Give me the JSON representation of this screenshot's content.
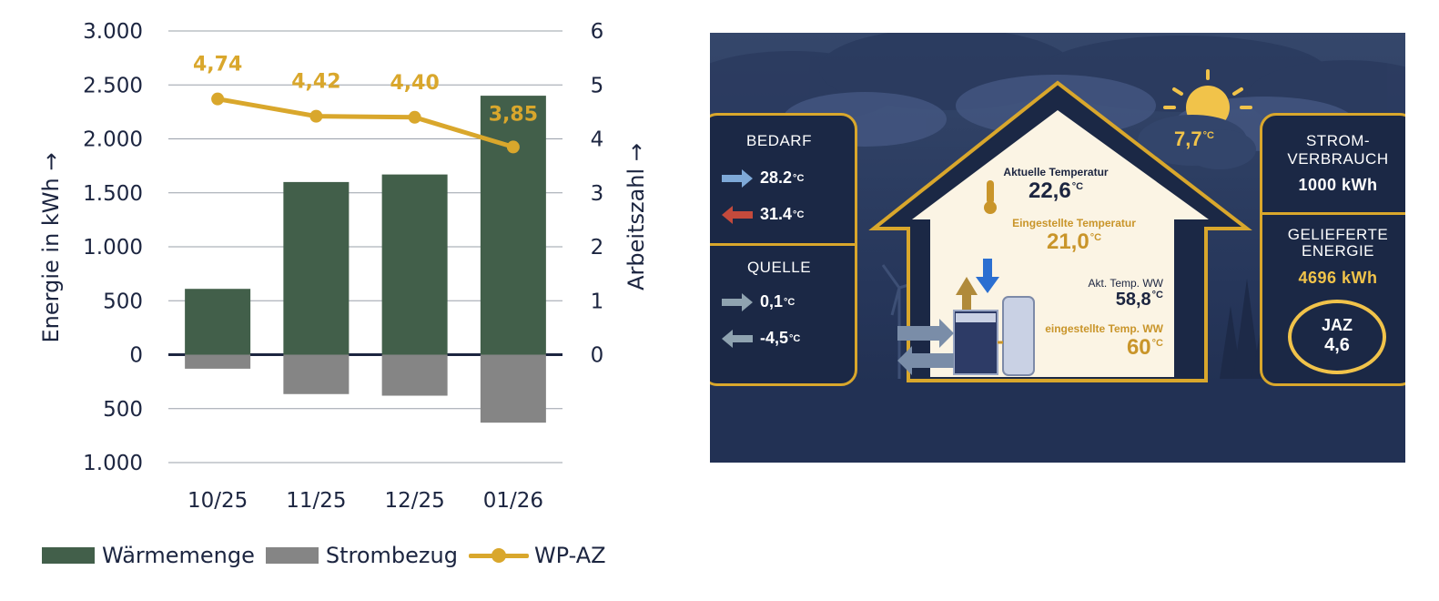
{
  "chart_data": {
    "type": "bar",
    "categories": [
      "10/25",
      "11/25",
      "12/25",
      "01/26"
    ],
    "series": [
      {
        "name": "Wärmemenge",
        "type": "bar",
        "axis": "left",
        "color": "#425f4a",
        "values": [
          610,
          1600,
          1670,
          2400
        ]
      },
      {
        "name": "Strombezug",
        "type": "bar",
        "axis": "left",
        "color": "#858585",
        "values": [
          -130,
          -365,
          -380,
          -630
        ]
      },
      {
        "name": "WP-AZ",
        "type": "line",
        "axis": "right",
        "color": "#d9a72c",
        "values": [
          4.74,
          4.42,
          4.4,
          3.85
        ],
        "labels": [
          "4,74",
          "4,42",
          "4,40",
          "3,85"
        ]
      }
    ],
    "ylabel": "Energie in kWh →",
    "y2label": "Arbeitszahl →",
    "ylim": [
      -1000,
      3000
    ],
    "y2lim": [
      -2,
      6
    ],
    "yticks": [
      3000,
      2500,
      2000,
      1500,
      1000,
      500,
      0,
      -500,
      -1000
    ],
    "yticklabels": [
      "3.000",
      "2.500",
      "2.000",
      "1.500",
      "1.000",
      "500",
      "0",
      "500",
      "1.000"
    ],
    "y2ticks": [
      6,
      5,
      4,
      3,
      2,
      1,
      0
    ],
    "y2ticklabels": [
      "6",
      "5",
      "4",
      "3",
      "2",
      "1",
      "0"
    ],
    "grid": true,
    "legend": "bottom-left"
  },
  "dashboard": {
    "bedarf": {
      "title": "BEDARF",
      "in": "28.2",
      "out": "31.4"
    },
    "quelle": {
      "title": "QUELLE",
      "in": "0,1",
      "out": "-4,5"
    },
    "unit_c": "°C",
    "outdoor_temp": "7,7",
    "house": {
      "current_label": "Aktuelle Temperatur",
      "current_value": "22,6",
      "set_label": "Eingestellte Temperatur",
      "set_value": "21,0",
      "ww_label": "Akt. Temp. WW",
      "ww_value": "58,8",
      "ww_set_label": "eingestellte Temp. WW",
      "ww_set_value": "60"
    },
    "strom": {
      "title": "STROM-\nVERBRAUCH",
      "value": "1000 kWh"
    },
    "energie": {
      "title": "GELIEFERTE\nENERGIE",
      "value": "4696 kWh"
    },
    "jaz": {
      "title": "JAZ",
      "value": "4,6"
    }
  }
}
